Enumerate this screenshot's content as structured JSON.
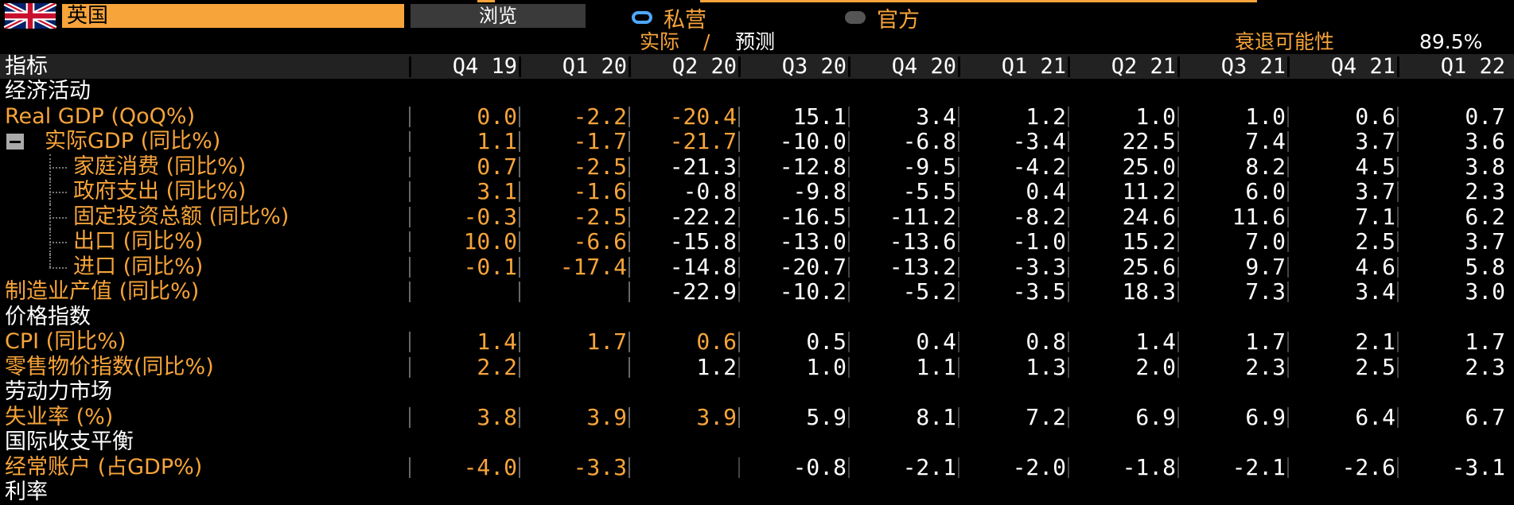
{
  "header": {
    "country": "英国",
    "browse_label": "浏览",
    "radio_private": "私营",
    "radio_official": "官方",
    "actual_label": "实际",
    "slash": "/",
    "forecast_label": "预测",
    "recession_label": "衰退可能性",
    "recession_value": "89.5%"
  },
  "table": {
    "indicator_header": "指标",
    "columns": [
      "Q4 19",
      "Q1 20",
      "Q2 20",
      "Q3 20",
      "Q4 20",
      "Q1 21",
      "Q2 21",
      "Q3 21",
      "Q4 21",
      "Q1 22"
    ],
    "rows": [
      {
        "label": "经济活动",
        "type": "section"
      },
      {
        "label": "Real GDP (QoQ%)",
        "type": "item",
        "indent": 0,
        "actual": 3,
        "values": [
          "0.0",
          "-2.2",
          "-20.4",
          "15.1",
          "3.4",
          "1.2",
          "1.0",
          "1.0",
          "0.6",
          "0.7"
        ]
      },
      {
        "label": "实际GDP (同比%)",
        "type": "item",
        "indent": 1,
        "collapsible": true,
        "actual": 3,
        "values": [
          "1.1",
          "-1.7",
          "-21.7",
          "-10.0",
          "-6.8",
          "-3.4",
          "22.5",
          "7.4",
          "3.7",
          "3.6"
        ]
      },
      {
        "label": "家庭消费 (同比%)",
        "type": "item",
        "indent": 2,
        "actual": 2,
        "values": [
          "0.7",
          "-2.5",
          "-21.3",
          "-12.8",
          "-9.5",
          "-4.2",
          "25.0",
          "8.2",
          "4.5",
          "3.8"
        ]
      },
      {
        "label": "政府支出 (同比%)",
        "type": "item",
        "indent": 2,
        "actual": 2,
        "values": [
          "3.1",
          "-1.6",
          "-0.8",
          "-9.8",
          "-5.5",
          "0.4",
          "11.2",
          "6.0",
          "3.7",
          "2.3"
        ]
      },
      {
        "label": "固定投资总额 (同比%)",
        "type": "item",
        "indent": 2,
        "actual": 2,
        "values": [
          "-0.3",
          "-2.5",
          "-22.2",
          "-16.5",
          "-11.2",
          "-8.2",
          "24.6",
          "11.6",
          "7.1",
          "6.2"
        ]
      },
      {
        "label": "出口 (同比%)",
        "type": "item",
        "indent": 2,
        "actual": 2,
        "values": [
          "10.0",
          "-6.6",
          "-15.8",
          "-13.0",
          "-13.6",
          "-1.0",
          "15.2",
          "7.0",
          "2.5",
          "3.7"
        ]
      },
      {
        "label": "进口 (同比%)",
        "type": "item",
        "indent": 2,
        "last": true,
        "actual": 2,
        "values": [
          "-0.1",
          "-17.4",
          "-14.8",
          "-20.7",
          "-13.2",
          "-3.3",
          "25.6",
          "9.7",
          "4.6",
          "5.8"
        ]
      },
      {
        "label": "制造业产值 (同比%)",
        "type": "item",
        "indent": 0,
        "actual": 2,
        "values": [
          "",
          "",
          "-22.9",
          "-10.2",
          "-5.2",
          "-3.5",
          "18.3",
          "7.3",
          "3.4",
          "3.0"
        ]
      },
      {
        "label": "价格指数",
        "type": "section"
      },
      {
        "label": "CPI (同比%)",
        "type": "item",
        "indent": 0,
        "actual": 3,
        "values": [
          "1.4",
          "1.7",
          "0.6",
          "0.5",
          "0.4",
          "0.8",
          "1.4",
          "1.7",
          "2.1",
          "1.7"
        ]
      },
      {
        "label": "零售物价指数(同比%)",
        "type": "item",
        "indent": 0,
        "actual": 2,
        "values": [
          "2.2",
          "",
          "1.2",
          "1.0",
          "1.1",
          "1.3",
          "2.0",
          "2.3",
          "2.5",
          "2.3"
        ]
      },
      {
        "label": "劳动力市场",
        "type": "section"
      },
      {
        "label": "失业率 (%)",
        "type": "item",
        "indent": 0,
        "actual": 3,
        "values": [
          "3.8",
          "3.9",
          "3.9",
          "5.9",
          "8.1",
          "7.2",
          "6.9",
          "6.9",
          "6.4",
          "6.7"
        ]
      },
      {
        "label": "国际收支平衡",
        "type": "section"
      },
      {
        "label": "经常账户 (占GDP%)",
        "type": "item",
        "indent": 0,
        "actual": 2,
        "values": [
          "-4.0",
          "-3.3",
          "",
          "-0.8",
          "-2.1",
          "-2.0",
          "-1.8",
          "-2.1",
          "-2.6",
          "-3.1"
        ]
      },
      {
        "label": "利率",
        "type": "section"
      }
    ]
  },
  "colors": {
    "accent": "#f7a43a",
    "forecast": "#ffffff",
    "radio_selected": "#4fa8ff",
    "background": "#000000"
  }
}
